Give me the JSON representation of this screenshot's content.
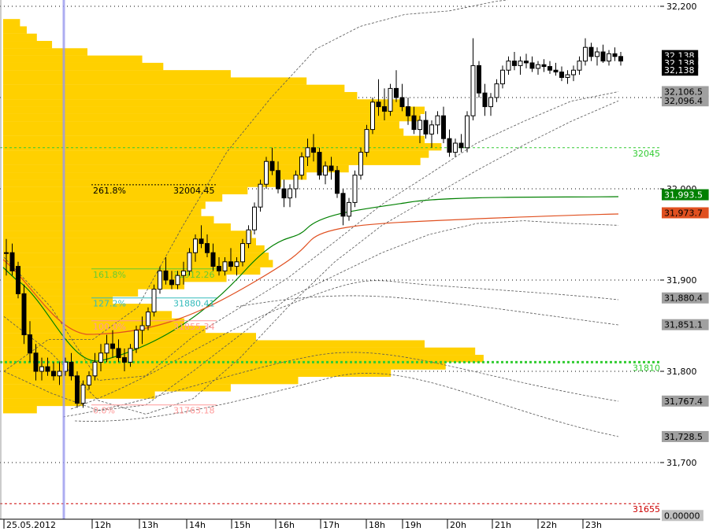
{
  "chart_data": {
    "type": "candlestick",
    "title": "",
    "xlabel": "",
    "ylabel": "",
    "ylim": [
      31640,
      32215
    ],
    "start_date": "25.05.2012",
    "y_ticks": [
      {
        "value": 31700,
        "label": "31,700"
      },
      {
        "value": 31800,
        "label": "31,800"
      },
      {
        "value": 31900,
        "label": "31,900"
      },
      {
        "value": 32000,
        "label": "32,000"
      },
      {
        "value": 32100,
        "label": "32,100"
      },
      {
        "value": 32200,
        "label": "32,200"
      }
    ],
    "time_labels": [
      "25.05.2012",
      "12h",
      "13h",
      "14h",
      "15h",
      "16h",
      "17h",
      "18h",
      "19h",
      "20h",
      "21h",
      "22h",
      "23h"
    ],
    "price_tags": [
      {
        "label": "32,138",
        "value": 32146,
        "bg": "#000000",
        "fg": "#ffffff"
      },
      {
        "label": "32,138",
        "value": 32138,
        "bg": "#000000",
        "fg": "#ffffff"
      },
      {
        "label": "32,138",
        "value": 32130,
        "bg": "#000000",
        "fg": "#ffffff"
      },
      {
        "label": "32,106.5",
        "value": 32106.5,
        "bg": "#a0a0a0",
        "fg": "#000000"
      },
      {
        "label": "32,096.4",
        "value": 32096.4,
        "bg": "#a0a0a0",
        "fg": "#000000"
      },
      {
        "label": "31,993.5",
        "value": 31993.5,
        "bg": "#008000",
        "fg": "#ffffff"
      },
      {
        "label": "31,973.7",
        "value": 31973.7,
        "bg": "#e05020",
        "fg": "#000000"
      },
      {
        "label": "31,880.4",
        "value": 31880.4,
        "bg": "#a0a0a0",
        "fg": "#000000"
      },
      {
        "label": "31,851.1",
        "value": 31851.1,
        "bg": "#a0a0a0",
        "fg": "#000000"
      },
      {
        "label": "31,767.4",
        "value": 31767.4,
        "bg": "#a0a0a0",
        "fg": "#000000"
      },
      {
        "label": "31,728.5",
        "value": 31728.5,
        "bg": "#a0a0a0",
        "fg": "#000000"
      },
      {
        "label": "0.00000",
        "value": 31642,
        "bg": "#c0c0c0",
        "fg": "#000000"
      }
    ],
    "horizontal_levels": [
      {
        "value": 32045,
        "label": "32045",
        "color": "#33cc33"
      },
      {
        "value": 31810,
        "label": "31810",
        "color": "#33cc33"
      },
      {
        "value": 31655,
        "label": "31655",
        "color": "#cc0000"
      }
    ],
    "fibonacci": [
      {
        "ratio": "261.8%",
        "price": "32004.45",
        "value": 32004.45,
        "color": "#000000"
      },
      {
        "ratio": "161.8%",
        "price": "31912.26",
        "value": 31912.26,
        "color": "#66cc33"
      },
      {
        "ratio": "127.2%",
        "price": "31880.41",
        "value": 31880.41,
        "color": "#33bbbb"
      },
      {
        "ratio": "100.0%",
        "price": "31855.34",
        "value": 31855.34,
        "color": "#ff9999"
      },
      {
        "ratio": "0.0%",
        "price": "31763.18",
        "value": 31763.18,
        "color": "#ff9999"
      }
    ],
    "volume_profile": {
      "color": "#ffd000",
      "levels": [
        [
          32182,
          20
        ],
        [
          32174,
          28
        ],
        [
          32166,
          40
        ],
        [
          32158,
          58
        ],
        [
          32150,
          100
        ],
        [
          32142,
          165
        ],
        [
          32134,
          190
        ],
        [
          32126,
          270
        ],
        [
          32118,
          360
        ],
        [
          32110,
          405
        ],
        [
          32102,
          420
        ],
        [
          32094,
          475
        ],
        [
          32086,
          500
        ],
        [
          32078,
          495
        ],
        [
          32070,
          470
        ],
        [
          32062,
          475
        ],
        [
          32054,
          500
        ],
        [
          32046,
          520
        ],
        [
          32038,
          505
        ],
        [
          32030,
          495
        ],
        [
          32022,
          410
        ],
        [
          32014,
          360
        ],
        [
          32006,
          330
        ],
        [
          31998,
          290
        ],
        [
          31990,
          260
        ],
        [
          31982,
          240
        ],
        [
          31974,
          235
        ],
        [
          31966,
          250
        ],
        [
          31958,
          270
        ],
        [
          31950,
          295
        ],
        [
          31942,
          300
        ],
        [
          31934,
          310
        ],
        [
          31926,
          315
        ],
        [
          31918,
          320
        ],
        [
          31910,
          305
        ],
        [
          31902,
          265
        ],
        [
          31894,
          215
        ],
        [
          31886,
          160
        ],
        [
          31878,
          130
        ],
        [
          31870,
          180
        ],
        [
          31862,
          200
        ],
        [
          31854,
          215
        ],
        [
          31846,
          240
        ],
        [
          31838,
          300
        ],
        [
          31830,
          500
        ],
        [
          31822,
          560
        ],
        [
          31814,
          570
        ],
        [
          31806,
          525
        ],
        [
          31798,
          460
        ],
        [
          31790,
          350
        ],
        [
          31782,
          270
        ],
        [
          31774,
          180
        ],
        [
          31766,
          95
        ],
        [
          31758,
          40
        ]
      ]
    },
    "candles": [
      [
        31930,
        31945,
        31905,
        31930
      ],
      [
        31930,
        31940,
        31905,
        31910
      ],
      [
        31915,
        31920,
        31880,
        31885
      ],
      [
        31885,
        31895,
        31830,
        31840
      ],
      [
        31840,
        31855,
        31810,
        31820
      ],
      [
        31820,
        31830,
        31790,
        31800
      ],
      [
        31800,
        31815,
        31790,
        31805
      ],
      [
        31805,
        31815,
        31795,
        31800
      ],
      [
        31800,
        31810,
        31790,
        31795
      ],
      [
        31795,
        31810,
        31785,
        31800
      ],
      [
        31800,
        31815,
        31795,
        31810
      ],
      [
        31810,
        31820,
        31790,
        31795
      ],
      [
        31795,
        31800,
        31760,
        31765
      ],
      [
        31765,
        31790,
        31760,
        31785
      ],
      [
        31785,
        31800,
        31780,
        31795
      ],
      [
        31795,
        31820,
        31790,
        31810
      ],
      [
        31810,
        31830,
        31800,
        31820
      ],
      [
        31820,
        31840,
        31810,
        31830
      ],
      [
        31830,
        31845,
        31815,
        31825
      ],
      [
        31825,
        31835,
        31810,
        31815
      ],
      [
        31815,
        31825,
        31800,
        31810
      ],
      [
        31810,
        31830,
        31805,
        31825
      ],
      [
        31825,
        31850,
        31820,
        31845
      ],
      [
        31845,
        31860,
        31830,
        31850
      ],
      [
        31850,
        31870,
        31845,
        31865
      ],
      [
        31865,
        31895,
        31860,
        31890
      ],
      [
        31890,
        31915,
        31885,
        31910
      ],
      [
        31910,
        31925,
        31895,
        31900
      ],
      [
        31900,
        31910,
        31890,
        31895
      ],
      [
        31895,
        31910,
        31890,
        31905
      ],
      [
        31905,
        31920,
        31895,
        31910
      ],
      [
        31910,
        31935,
        31905,
        31930
      ],
      [
        31930,
        31950,
        31920,
        31945
      ],
      [
        31945,
        31960,
        31935,
        31940
      ],
      [
        31940,
        31950,
        31925,
        31930
      ],
      [
        31930,
        31940,
        31910,
        31915
      ],
      [
        31915,
        31925,
        31905,
        31910
      ],
      [
        31910,
        31925,
        31905,
        31920
      ],
      [
        31920,
        31935,
        31910,
        31915
      ],
      [
        31915,
        31925,
        31905,
        31920
      ],
      [
        31920,
        31945,
        31915,
        31940
      ],
      [
        31940,
        31960,
        31935,
        31955
      ],
      [
        31955,
        31985,
        31950,
        31980
      ],
      [
        31980,
        32010,
        31975,
        32005
      ],
      [
        32005,
        32035,
        32000,
        32030
      ],
      [
        32030,
        32045,
        32015,
        32020
      ],
      [
        32020,
        32030,
        31995,
        32000
      ],
      [
        32000,
        32010,
        31980,
        31990
      ],
      [
        31990,
        32005,
        31980,
        32000
      ],
      [
        32000,
        32020,
        31990,
        32015
      ],
      [
        32015,
        32040,
        32010,
        32035
      ],
      [
        32035,
        32055,
        32025,
        32045
      ],
      [
        32045,
        32060,
        32030,
        32040
      ],
      [
        32040,
        32045,
        32010,
        32015
      ],
      [
        32015,
        32030,
        32005,
        32025
      ],
      [
        32025,
        32035,
        32010,
        32020
      ],
      [
        32020,
        32025,
        31990,
        31995
      ],
      [
        31995,
        32000,
        31960,
        31970
      ],
      [
        31970,
        31990,
        31965,
        31985
      ],
      [
        31985,
        32020,
        31980,
        32015
      ],
      [
        32015,
        32045,
        32010,
        32040
      ],
      [
        32040,
        32070,
        32035,
        32065
      ],
      [
        32065,
        32100,
        32060,
        32095
      ],
      [
        32095,
        32120,
        32080,
        32090
      ],
      [
        32090,
        32110,
        32075,
        32085
      ],
      [
        32085,
        32115,
        32080,
        32110
      ],
      [
        32110,
        32130,
        32095,
        32100
      ],
      [
        32100,
        32115,
        32085,
        32090
      ],
      [
        32090,
        32100,
        32070,
        32080
      ],
      [
        32080,
        32090,
        32060,
        32065
      ],
      [
        32065,
        32080,
        32050,
        32075
      ],
      [
        32075,
        32085,
        32055,
        32060
      ],
      [
        32060,
        32075,
        32045,
        32070
      ],
      [
        32070,
        32085,
        32060,
        32080
      ],
      [
        32080,
        32090,
        32050,
        32055
      ],
      [
        32055,
        32065,
        32035,
        32040
      ],
      [
        32040,
        32055,
        32035,
        32050
      ],
      [
        32050,
        32060,
        32040,
        32045
      ],
      [
        32045,
        32085,
        32040,
        32080
      ],
      [
        32080,
        32165,
        32075,
        32135
      ],
      [
        32135,
        32140,
        32100,
        32105
      ],
      [
        32105,
        32115,
        32080,
        32090
      ],
      [
        32090,
        32105,
        32080,
        32100
      ],
      [
        32100,
        32120,
        32095,
        32115
      ],
      [
        32115,
        32135,
        32110,
        32130
      ],
      [
        32130,
        32145,
        32125,
        32140
      ],
      [
        32140,
        32150,
        32130,
        32135
      ],
      [
        32135,
        32145,
        32125,
        32140
      ],
      [
        32140,
        32148,
        32132,
        32138
      ],
      [
        32138,
        32145,
        32128,
        32132
      ],
      [
        32132,
        32140,
        32125,
        32136
      ],
      [
        32136,
        32142,
        32128,
        32134
      ],
      [
        32134,
        32140,
        32126,
        32130
      ],
      [
        32130,
        32138,
        32124,
        32128
      ],
      [
        32128,
        32134,
        32118,
        32122
      ],
      [
        32122,
        32130,
        32115,
        32125
      ],
      [
        32125,
        32135,
        32118,
        32130
      ],
      [
        32130,
        32145,
        32125,
        32140
      ],
      [
        32140,
        32165,
        32135,
        32155
      ],
      [
        32155,
        32160,
        32140,
        32145
      ],
      [
        32145,
        32155,
        32135,
        32150
      ],
      [
        32150,
        32158,
        32138,
        32140
      ],
      [
        32140,
        32152,
        32135,
        32148
      ],
      [
        32148,
        32155,
        32140,
        32145
      ],
      [
        32145,
        32150,
        32135,
        32140
      ]
    ],
    "bollinger": {
      "upper": [
        [
          31925,
          31800
        ],
        [
          31870,
          31835
        ],
        [
          31790,
          31835
        ],
        [
          31795,
          31870
        ],
        [
          31838,
          31958
        ],
        [
          31870,
          32040
        ],
        [
          31902,
          32100
        ],
        [
          31942,
          32153
        ],
        [
          31983,
          32178
        ],
        [
          32016,
          32191
        ],
        [
          32050,
          32195
        ],
        [
          32074,
          32205
        ],
        [
          32096,
          32212
        ],
        [
          32106.5,
          32218
        ]
      ],
      "lower": [
        [
          31860,
          31800
        ],
        [
          31820,
          31776
        ],
        [
          31768,
          31757
        ],
        [
          31753,
          31763
        ],
        [
          31770,
          31800
        ],
        [
          31815,
          31840
        ],
        [
          31870,
          31880
        ],
        [
          31920,
          31905
        ],
        [
          31960,
          31930
        ],
        [
          31990,
          31950
        ],
        [
          32020,
          31962
        ],
        [
          32048,
          31965
        ],
        [
          32074,
          31962
        ],
        [
          32096.4,
          31960
        ]
      ],
      "outer_upper": [
        31880.4,
        31851.1
      ],
      "outer_lower": [
        31767.4,
        31728.5
      ]
    },
    "moving_averages": [
      {
        "name": "",
        "color": "#008000",
        "last": 31993.5
      },
      {
        "name": "",
        "color": "#e05020",
        "last": 31973.7
      }
    ]
  }
}
